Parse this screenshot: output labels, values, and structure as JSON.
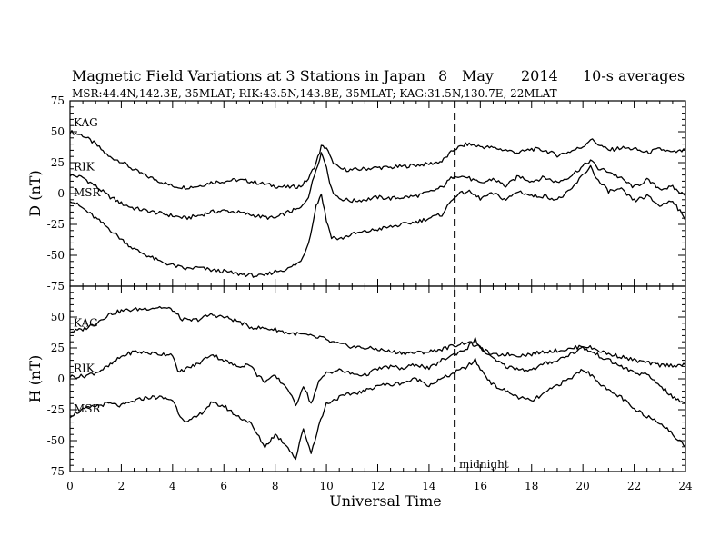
{
  "header": {
    "title": "Magnetic Field Variations at 3 Stations in Japan",
    "date_day": "8",
    "date_month": "May",
    "date_year": "2014",
    "averaging": "10-s averages",
    "stations": "MSR:44.4N,142.3E, 35MLAT;  RIK:43.5N,143.8E, 35MLAT;  KAG:31.5N,130.7E, 22MLAT"
  },
  "chart_data": [
    {
      "type": "line",
      "ylabel": "D (nT)",
      "ylim": [
        -75,
        75
      ],
      "yticks": [
        75,
        50,
        25,
        0,
        -25,
        -50,
        -75
      ],
      "xlim": [
        0,
        24
      ],
      "series": [
        {
          "name": "KAG",
          "x": [
            0,
            0.5,
            1,
            1.5,
            2,
            2.5,
            3,
            3.5,
            4,
            4.5,
            5,
            5.5,
            6,
            6.5,
            7,
            7.5,
            8,
            8.5,
            9,
            9.3,
            9.6,
            9.8,
            10,
            10.2,
            10.5,
            11,
            11.5,
            12,
            12.5,
            13,
            13.5,
            14,
            14.5,
            15,
            15.5,
            16,
            16.5,
            17,
            17.5,
            18,
            18.5,
            19,
            19.5,
            20,
            20.3,
            20.6,
            21,
            21.5,
            22,
            22.5,
            23,
            23.5,
            24
          ],
          "y": [
            50,
            47,
            40,
            30,
            26,
            19,
            14,
            10,
            6,
            5,
            6,
            9,
            10,
            11,
            10,
            8,
            6,
            5,
            6,
            12,
            25,
            38,
            37,
            27,
            20,
            19,
            20,
            21,
            21,
            22,
            23,
            24,
            26,
            36,
            40,
            38,
            37,
            35,
            33,
            36,
            35,
            31,
            34,
            38,
            44,
            40,
            35,
            37,
            36,
            33,
            36,
            33,
            35
          ]
        },
        {
          "name": "RIK",
          "x": [
            0,
            0.5,
            1,
            1.5,
            2,
            2.5,
            3,
            3.5,
            4,
            4.5,
            5,
            5.5,
            6,
            6.5,
            7,
            7.5,
            8,
            8.5,
            9,
            9.3,
            9.6,
            9.8,
            10,
            10.2,
            10.5,
            11,
            11.5,
            12,
            12.5,
            13,
            13.5,
            14,
            14.5,
            15,
            15.5,
            16,
            16.5,
            17,
            17.5,
            18,
            18.5,
            19,
            19.5,
            20,
            20.3,
            20.6,
            21,
            21.5,
            22,
            22.5,
            23,
            23.5,
            24
          ],
          "y": [
            15,
            13,
            6,
            -2,
            -8,
            -12,
            -14,
            -16,
            -18,
            -20,
            -18,
            -15,
            -14,
            -15,
            -17,
            -19,
            -20,
            -15,
            -12,
            -2,
            20,
            33,
            22,
            3,
            -4,
            -6,
            -5,
            -3,
            -4,
            -3,
            -2,
            1,
            5,
            15,
            13,
            8,
            12,
            6,
            14,
            10,
            13,
            9,
            14,
            22,
            27,
            20,
            18,
            12,
            5,
            11,
            4,
            5,
            -2
          ]
        },
        {
          "name": "MSR",
          "x": [
            0,
            0.5,
            1,
            1.5,
            2,
            2.5,
            3,
            3.5,
            4,
            4.5,
            5,
            5.5,
            6,
            6.5,
            7,
            7.5,
            8,
            8.5,
            9,
            9.3,
            9.6,
            9.8,
            10,
            10.2,
            10.5,
            11,
            11.5,
            12,
            12.5,
            13,
            13.5,
            14,
            14.5,
            15,
            15.5,
            16,
            16.5,
            17,
            17.5,
            18,
            18.5,
            19,
            19.5,
            20,
            20.3,
            20.6,
            21,
            21.5,
            22,
            22.5,
            23,
            23.5,
            24
          ],
          "y": [
            -5,
            -12,
            -20,
            -28,
            -37,
            -45,
            -50,
            -55,
            -58,
            -61,
            -60,
            -62,
            -63,
            -65,
            -66,
            -67,
            -63,
            -61,
            -55,
            -40,
            -10,
            0,
            -22,
            -35,
            -37,
            -33,
            -31,
            -29,
            -27,
            -25,
            -23,
            -20,
            -17,
            -2,
            2,
            -4,
            0,
            -5,
            2,
            -2,
            -2,
            -5,
            2,
            15,
            22,
            10,
            2,
            3,
            -6,
            -2,
            -10,
            -5,
            -22
          ]
        }
      ]
    },
    {
      "type": "line",
      "ylabel": "H (nT)",
      "ylim": [
        -75,
        75
      ],
      "yticks": [
        50,
        25,
        0,
        -25,
        -50,
        -75
      ],
      "xlim": [
        0,
        24
      ],
      "xticks": [
        0,
        2,
        4,
        6,
        8,
        10,
        12,
        14,
        16,
        18,
        20,
        22,
        24
      ],
      "xlabel": "Universal Time",
      "series": [
        {
          "name": "KAG",
          "x": [
            0,
            0.5,
            1,
            1.5,
            2,
            2.5,
            3,
            3.5,
            4,
            4.3,
            4.6,
            5,
            5.5,
            6,
            6.5,
            7,
            7.5,
            8,
            8.5,
            9,
            9.3,
            9.6,
            9.8,
            10,
            10.5,
            11,
            11.5,
            12,
            12.5,
            13,
            13.5,
            14,
            14.5,
            15,
            15.5,
            16,
            16.5,
            17,
            17.5,
            18,
            18.5,
            19,
            19.5,
            20,
            20.5,
            21,
            21.5,
            22,
            22.5,
            23,
            23.5,
            24
          ],
          "y": [
            38,
            40,
            45,
            52,
            55,
            56,
            57,
            58,
            56,
            49,
            47,
            48,
            52,
            50,
            47,
            42,
            41,
            40,
            37,
            36,
            35,
            33,
            34,
            31,
            28,
            26,
            25,
            24,
            22,
            21,
            21,
            22,
            24,
            27,
            30,
            25,
            19,
            20,
            19,
            20,
            22,
            23,
            24,
            27,
            24,
            20,
            18,
            15,
            13,
            11,
            11,
            11
          ]
        },
        {
          "name": "RIK",
          "x": [
            0,
            0.5,
            1,
            1.5,
            2,
            2.5,
            3,
            3.5,
            4,
            4.2,
            4.5,
            5,
            5.5,
            6,
            6.5,
            7,
            7.3,
            7.6,
            8,
            8.5,
            8.8,
            9.1,
            9.4,
            9.7,
            10,
            10.5,
            11,
            11.5,
            12,
            12.5,
            13,
            13.5,
            14,
            14.5,
            15,
            15.5,
            15.8,
            16,
            16.5,
            17,
            17.5,
            18,
            18.5,
            19,
            19.5,
            20,
            20.5,
            21,
            21.5,
            22,
            22.5,
            23,
            23.5,
            24
          ],
          "y": [
            2,
            2,
            5,
            10,
            18,
            22,
            21,
            20,
            20,
            5,
            8,
            12,
            20,
            15,
            10,
            12,
            3,
            -2,
            2,
            -8,
            -22,
            -5,
            -20,
            -3,
            5,
            7,
            4,
            3,
            8,
            10,
            8,
            12,
            8,
            15,
            20,
            25,
            32,
            25,
            16,
            10,
            8,
            7,
            12,
            15,
            20,
            25,
            20,
            15,
            10,
            5,
            3,
            -5,
            -15,
            -20
          ]
        },
        {
          "name": "MSR",
          "x": [
            0,
            0.5,
            1,
            1.5,
            2,
            2.5,
            3,
            3.5,
            4,
            4.3,
            4.6,
            5,
            5.5,
            6,
            6.5,
            7,
            7.3,
            7.6,
            8,
            8.5,
            8.8,
            9.1,
            9.4,
            9.7,
            10,
            10.5,
            11,
            11.5,
            12,
            12.5,
            13,
            13.5,
            14,
            14.5,
            15,
            15.5,
            15.8,
            16,
            16.5,
            17,
            17.5,
            18,
            18.5,
            19,
            19.5,
            20,
            20.5,
            21,
            21.5,
            22,
            22.5,
            23,
            23.5,
            24
          ],
          "y": [
            -30,
            -25,
            -22,
            -20,
            -22,
            -18,
            -15,
            -15,
            -17,
            -30,
            -35,
            -30,
            -20,
            -22,
            -30,
            -35,
            -45,
            -55,
            -45,
            -55,
            -65,
            -40,
            -60,
            -38,
            -20,
            -15,
            -12,
            -10,
            -5,
            -5,
            -3,
            0,
            -5,
            0,
            5,
            10,
            15,
            8,
            -5,
            -10,
            -15,
            -18,
            -12,
            -5,
            0,
            8,
            0,
            -10,
            -15,
            -25,
            -30,
            -35,
            -45,
            -55
          ]
        }
      ]
    }
  ],
  "annotations": {
    "midnight_ut": 15,
    "midnight_label": "midnight"
  }
}
